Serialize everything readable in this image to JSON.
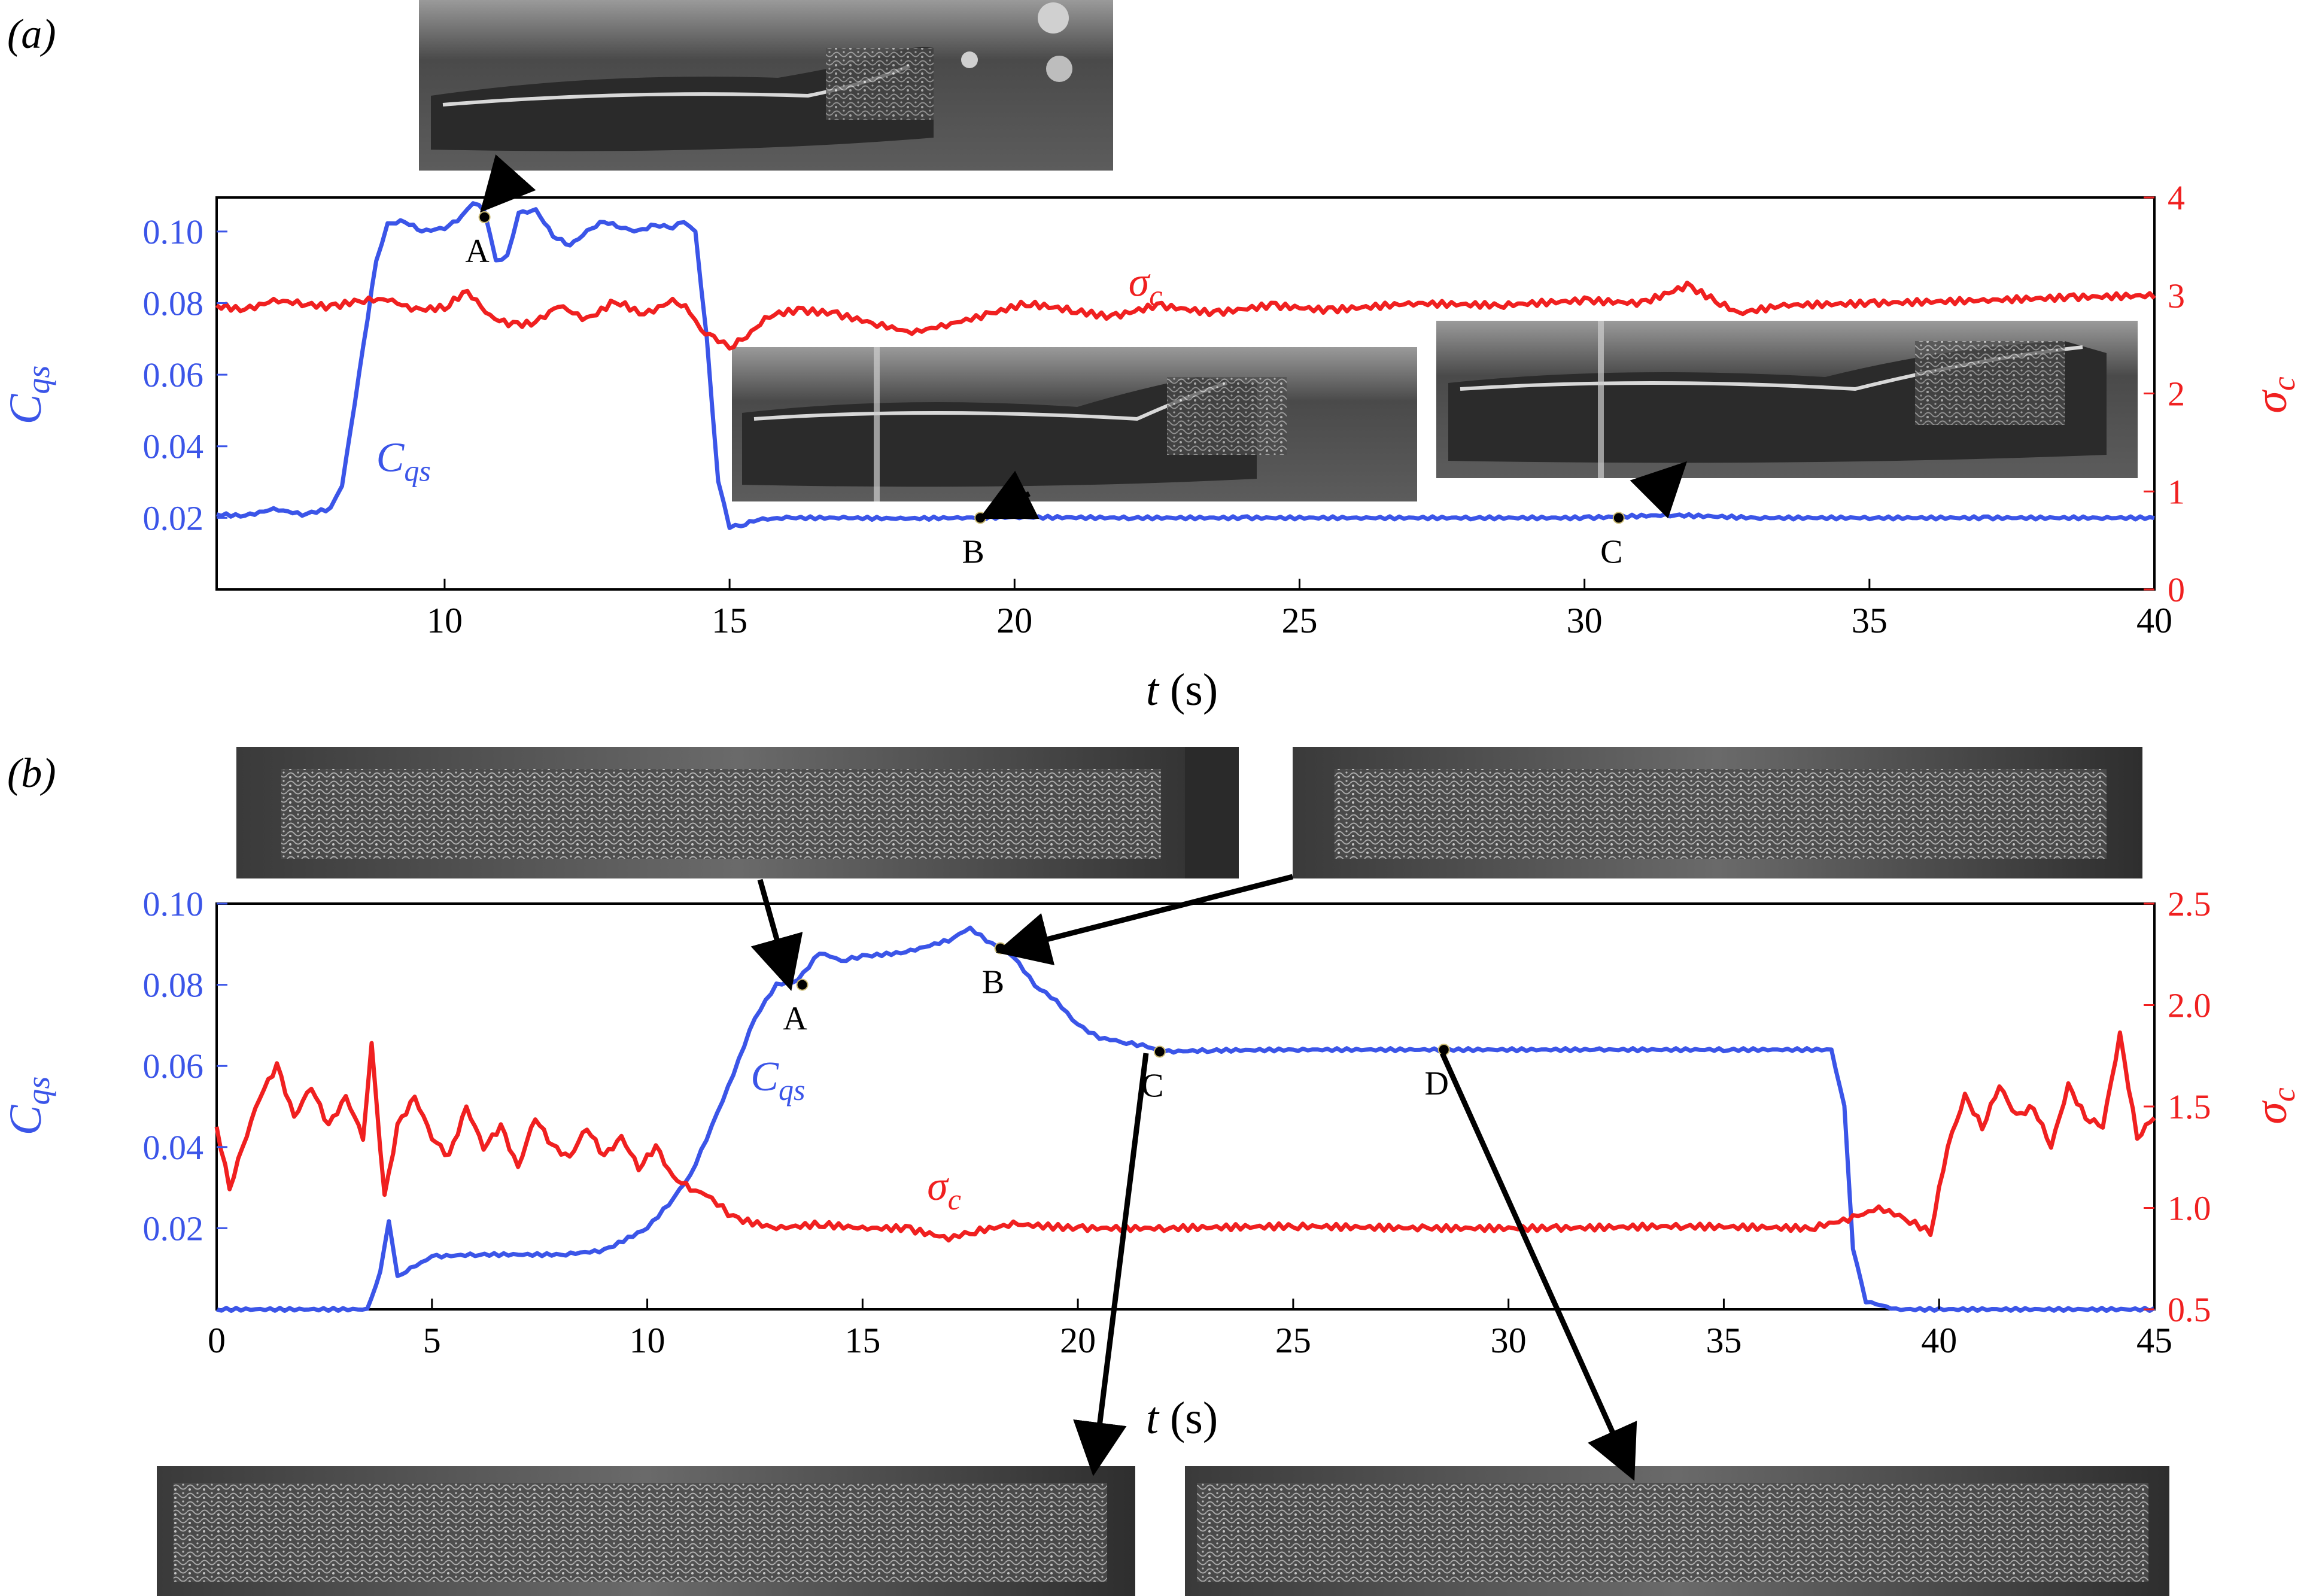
{
  "colors": {
    "cqs": "#3b55e8",
    "sigma": "#f02020",
    "axis": "#000000",
    "photo_dark": "#262626",
    "photo_mid": "#7a7a7a",
    "photo_light": "#d8d8d8"
  },
  "chart_data": [
    {
      "type": "line",
      "panel_label": "(a)",
      "xlabel_var": "t",
      "xlabel_unit": " (s)",
      "ylabel_left": {
        "base": "C",
        "sub": "qs"
      },
      "ylabel_right": {
        "base": "σ",
        "sub": "c"
      },
      "xlim": [
        6,
        40
      ],
      "ylim_left": [
        0.0,
        0.1095
      ],
      "ylim_right": [
        0,
        4
      ],
      "xticks": [
        10,
        15,
        20,
        25,
        30,
        35,
        40
      ],
      "yticks_left": [
        0.02,
        0.04,
        0.06,
        0.08,
        0.1
      ],
      "yticks_left_labels": [
        "0.02",
        "0.04",
        "0.06",
        "0.08",
        "0.10"
      ],
      "yticks_right": [
        0,
        1,
        2,
        3,
        4
      ],
      "yticks_right_labels": [
        "0",
        "1",
        "2",
        "3",
        "4"
      ],
      "series": [
        {
          "name": "Cqs",
          "axis": "left",
          "x": [
            6,
            6.5,
            7,
            7.5,
            8,
            8.2,
            8.5,
            8.8,
            9.0,
            9.3,
            9.6,
            10.0,
            10.3,
            10.5,
            10.7,
            10.9,
            11.1,
            11.3,
            11.6,
            11.9,
            12.2,
            12.5,
            12.8,
            13.1,
            13.4,
            13.7,
            14.0,
            14.2,
            14.4,
            14.6,
            14.8,
            15.0,
            15.2,
            15.5,
            16,
            17,
            18,
            19,
            20,
            22,
            24,
            26,
            28,
            30,
            31.5,
            33,
            35,
            37,
            39,
            40
          ],
          "y": [
            0.021,
            0.0205,
            0.0225,
            0.021,
            0.0225,
            0.029,
            0.06,
            0.092,
            0.102,
            0.103,
            0.1,
            0.101,
            0.104,
            0.108,
            0.106,
            0.092,
            0.093,
            0.105,
            0.106,
            0.099,
            0.096,
            0.1,
            0.103,
            0.101,
            0.1,
            0.102,
            0.101,
            0.103,
            0.1,
            0.07,
            0.03,
            0.0175,
            0.018,
            0.0195,
            0.02,
            0.02,
            0.0198,
            0.02,
            0.0202,
            0.02,
            0.02,
            0.02,
            0.02,
            0.02,
            0.0208,
            0.02,
            0.02,
            0.02,
            0.02,
            0.02
          ]
        },
        {
          "name": "σc",
          "axis": "right",
          "x": [
            6,
            6.5,
            7,
            7.5,
            8,
            8.5,
            9,
            9.5,
            10,
            10.4,
            10.8,
            11.2,
            11.6,
            12.0,
            12.5,
            13.0,
            13.5,
            14.0,
            14.3,
            14.5,
            14.8,
            15.0,
            15.3,
            15.7,
            16.2,
            16.8,
            17.5,
            18.2,
            18.8,
            19.5,
            20.2,
            21.0,
            21.7,
            22.5,
            23.5,
            24.5,
            25.5,
            27,
            28.5,
            30,
            31,
            31.8,
            32.3,
            32.7,
            33.5,
            35,
            37,
            38.5,
            40
          ],
          "y": [
            2.9,
            2.85,
            2.95,
            2.92,
            2.88,
            2.95,
            2.96,
            2.85,
            2.88,
            3.05,
            2.78,
            2.7,
            2.72,
            2.9,
            2.75,
            2.95,
            2.8,
            2.95,
            2.85,
            2.65,
            2.55,
            2.48,
            2.58,
            2.8,
            2.85,
            2.82,
            2.72,
            2.62,
            2.7,
            2.8,
            2.92,
            2.85,
            2.78,
            2.9,
            2.82,
            2.9,
            2.85,
            2.92,
            2.9,
            2.95,
            2.92,
            3.1,
            2.95,
            2.82,
            2.9,
            2.92,
            2.95,
            2.98,
            3.0
          ]
        }
      ],
      "annotations": [
        {
          "label": "A",
          "x": 10.7,
          "y": 0.104
        },
        {
          "label": "B",
          "x": 19.4,
          "y": 0.02
        },
        {
          "label": "C",
          "x": 30.6,
          "y": 0.02
        }
      ],
      "series_labels": [
        {
          "text_base": "C",
          "text_sub": "qs",
          "x": 8.8,
          "y": 0.033,
          "color_key": "cqs"
        },
        {
          "text_base": "σ",
          "text_sub": "c",
          "x": 22.0,
          "y": 0.082,
          "color_key": "sigma"
        }
      ]
    },
    {
      "type": "line",
      "panel_label": "(b)",
      "xlabel_var": "t",
      "xlabel_unit": " (s)",
      "ylabel_left": {
        "base": "C",
        "sub": "qs"
      },
      "ylabel_right": {
        "base": "σ",
        "sub": "c"
      },
      "xlim": [
        0,
        45
      ],
      "ylim_left": [
        0.0,
        0.1
      ],
      "ylim_right": [
        0.5,
        2.5
      ],
      "xticks": [
        0,
        5,
        10,
        15,
        20,
        25,
        30,
        35,
        40,
        45
      ],
      "yticks_left": [
        0.02,
        0.04,
        0.06,
        0.08,
        0.1
      ],
      "yticks_left_labels": [
        "0.02",
        "0.04",
        "0.06",
        "0.08",
        "0.10"
      ],
      "yticks_right": [
        0.5,
        1.0,
        1.5,
        2.0,
        2.5
      ],
      "yticks_right_labels": [
        "0.5",
        "1.0",
        "1.5",
        "2.0",
        "2.5"
      ],
      "series": [
        {
          "name": "Cqs",
          "axis": "left",
          "x": [
            0,
            3.5,
            3.8,
            4.0,
            4.2,
            4.5,
            5.0,
            6.0,
            8.0,
            9.0,
            10.0,
            10.5,
            11.0,
            11.5,
            12.0,
            12.5,
            13.0,
            13.5,
            14.0,
            14.5,
            15.0,
            16.0,
            17.0,
            17.5,
            18.0,
            18.5,
            19.0,
            19.5,
            20.0,
            20.5,
            21.0,
            21.5,
            22.0,
            23.0,
            25.0,
            28.5,
            32.0,
            35.0,
            37.5,
            37.8,
            38.0,
            38.3,
            39.0,
            45.0
          ],
          "y": [
            0.0,
            0.0,
            0.009,
            0.022,
            0.008,
            0.01,
            0.013,
            0.0135,
            0.0135,
            0.0145,
            0.02,
            0.026,
            0.033,
            0.045,
            0.058,
            0.072,
            0.08,
            0.081,
            0.088,
            0.086,
            0.087,
            0.088,
            0.091,
            0.094,
            0.09,
            0.087,
            0.08,
            0.076,
            0.07,
            0.067,
            0.066,
            0.065,
            0.0635,
            0.0638,
            0.064,
            0.064,
            0.064,
            0.064,
            0.064,
            0.05,
            0.015,
            0.002,
            0.0,
            0.0
          ]
        },
        {
          "name": "σc",
          "axis": "right",
          "x": [
            0,
            0.3,
            0.6,
            1.0,
            1.4,
            1.8,
            2.2,
            2.6,
            3.0,
            3.4,
            3.6,
            3.9,
            4.2,
            4.6,
            5.0,
            5.4,
            5.8,
            6.2,
            6.6,
            7.0,
            7.4,
            7.8,
            8.2,
            8.6,
            9.0,
            9.4,
            9.8,
            10.2,
            10.6,
            11.0,
            11.5,
            12.0,
            13.0,
            14.0,
            15.0,
            16.0,
            17.0,
            17.5,
            18.5,
            20.0,
            22.0,
            25.0,
            28.0,
            31.0,
            34.0,
            37.0,
            38.0,
            38.6,
            39.2,
            39.8,
            40.2,
            40.6,
            41.0,
            41.4,
            41.8,
            42.2,
            42.6,
            43.0,
            43.4,
            43.8,
            44.2,
            44.6,
            45.0
          ],
          "y": [
            1.4,
            1.1,
            1.3,
            1.55,
            1.7,
            1.45,
            1.6,
            1.4,
            1.55,
            1.35,
            1.8,
            1.05,
            1.4,
            1.55,
            1.35,
            1.25,
            1.5,
            1.3,
            1.4,
            1.2,
            1.45,
            1.3,
            1.25,
            1.4,
            1.25,
            1.35,
            1.2,
            1.3,
            1.15,
            1.1,
            1.05,
            0.95,
            0.9,
            0.92,
            0.9,
            0.9,
            0.85,
            0.88,
            0.92,
            0.9,
            0.9,
            0.91,
            0.9,
            0.9,
            0.91,
            0.9,
            0.95,
            1.0,
            0.95,
            0.88,
            1.3,
            1.55,
            1.4,
            1.6,
            1.45,
            1.5,
            1.3,
            1.6,
            1.45,
            1.4,
            1.85,
            1.35,
            1.45
          ]
        }
      ],
      "annotations": [
        {
          "label": "A",
          "x": 13.6,
          "y": 0.08
        },
        {
          "label": "B",
          "x": 18.2,
          "y": 0.089
        },
        {
          "label": "C",
          "x": 21.9,
          "y": 0.0635
        },
        {
          "label": "D",
          "x": 28.5,
          "y": 0.064
        }
      ],
      "series_labels": [
        {
          "text_base": "C",
          "text_sub": "qs",
          "x": 12.4,
          "y": 0.054,
          "color_key": "cqs"
        },
        {
          "text_base": "σ",
          "text_sub": "c",
          "x": 16.5,
          "y": 0.027,
          "color_key": "sigma"
        }
      ]
    }
  ]
}
